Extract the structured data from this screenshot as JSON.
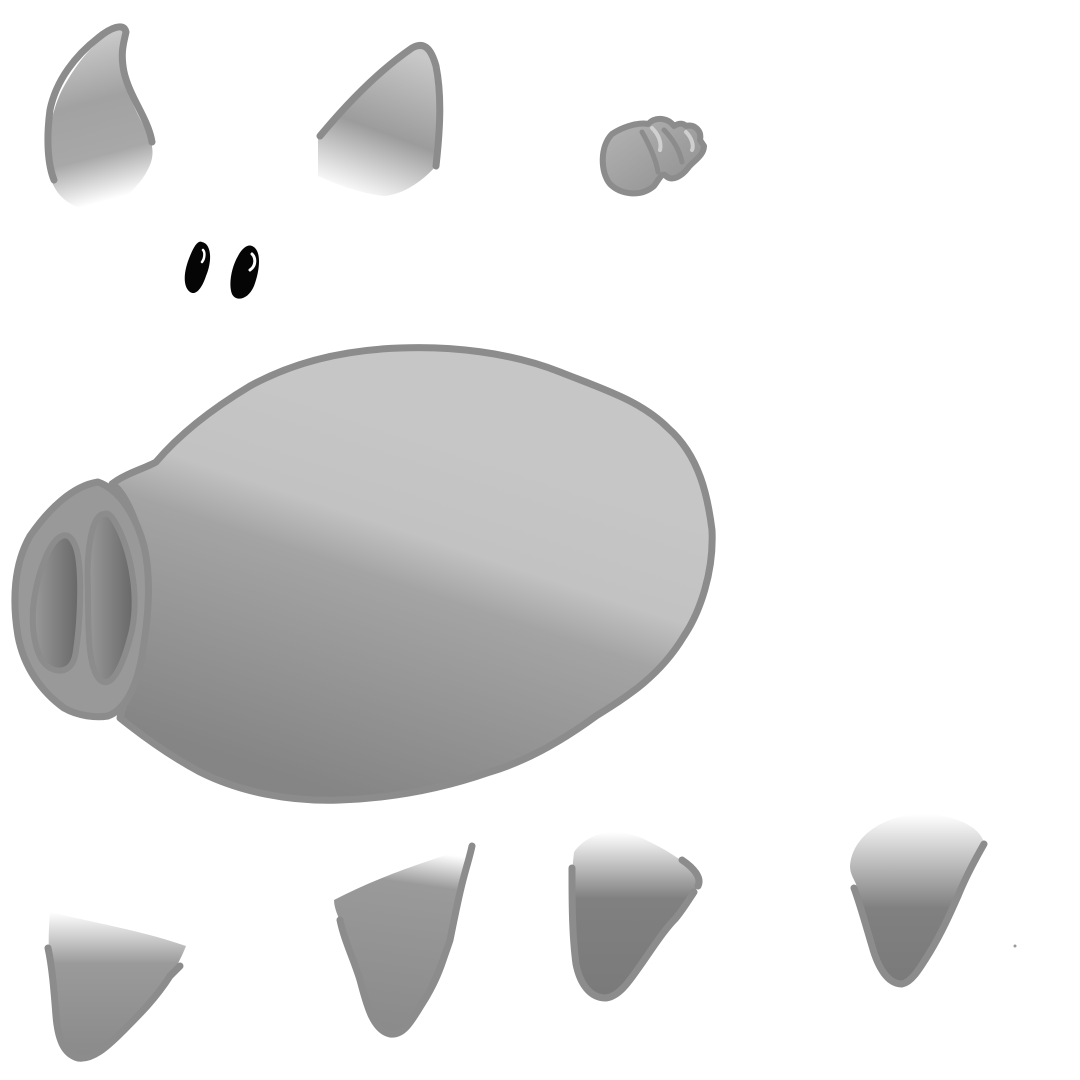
{
  "sprite_sheet": {
    "subject": "pig",
    "background": "#ffffff",
    "colors": {
      "outline": "#8c8c8c",
      "body_light": "#c6c6c6",
      "body_dark": "#808080",
      "fill_mid": "#9a9a9a",
      "nostril_dark": "#6a6a6a",
      "eye": "#050505",
      "eye_highlight": "#ffffff"
    },
    "parts": [
      {
        "name": "ear-left"
      },
      {
        "name": "ear-right"
      },
      {
        "name": "tail"
      },
      {
        "name": "eye-left"
      },
      {
        "name": "eye-right"
      },
      {
        "name": "body"
      },
      {
        "name": "snout"
      },
      {
        "name": "leg-front-left"
      },
      {
        "name": "leg-front-right"
      },
      {
        "name": "leg-back-left"
      },
      {
        "name": "leg-back-right"
      }
    ]
  }
}
